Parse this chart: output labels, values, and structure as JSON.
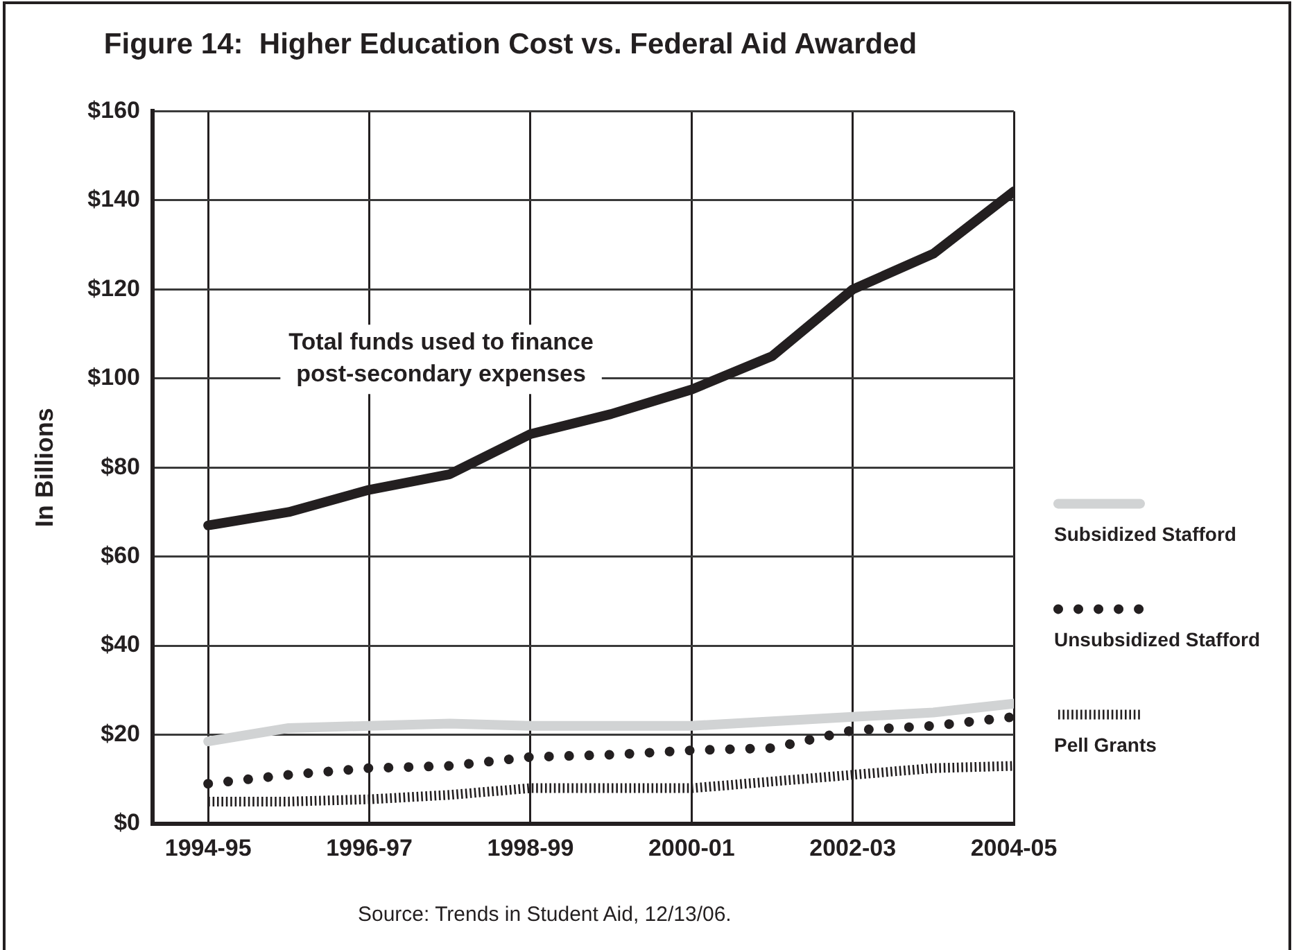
{
  "chart_data": {
    "type": "line",
    "title": "Figure 14:  Higher Education Cost vs. Federal Aid Awarded",
    "ylabel": "In Billions",
    "categories": [
      "1994-95",
      null,
      "1996-97",
      null,
      "1998-99",
      null,
      "2000-01",
      null,
      "2002-03",
      null,
      "2004-05"
    ],
    "series": [
      {
        "name": "Total funds used to finance post-secondary expenses",
        "color": "#231f20",
        "line_style": "solid",
        "values": [
          67,
          70,
          75,
          78.5,
          87.5,
          92,
          97.5,
          105,
          120,
          128,
          142
        ]
      },
      {
        "name": "Subsidized Stafford",
        "color": "#d1d3d4",
        "line_style": "solid",
        "values": [
          18.5,
          21.5,
          22,
          22.5,
          22,
          22,
          22,
          23,
          24,
          25,
          27
        ]
      },
      {
        "name": "Unsubsidized Stafford",
        "color": "#231f20",
        "line_style": "dotted",
        "values": [
          9,
          11,
          12.5,
          13,
          15,
          15.5,
          16.5,
          17,
          21,
          22,
          24
        ]
      },
      {
        "name": "Pell Grants",
        "color": "#231f20",
        "line_style": "dashed",
        "values": [
          5,
          5,
          5.5,
          6.5,
          8,
          8,
          8,
          9.5,
          11,
          12.5,
          13
        ]
      }
    ],
    "ylim": [
      0,
      160
    ],
    "yticks": [
      {
        "value": 0,
        "label": "$0"
      },
      {
        "value": 20,
        "label": "$20"
      },
      {
        "value": 40,
        "label": "$40"
      },
      {
        "value": 60,
        "label": "$60"
      },
      {
        "value": 80,
        "label": "$80"
      },
      {
        "value": 100,
        "label": "$100"
      },
      {
        "value": 120,
        "label": "$120"
      },
      {
        "value": 140,
        "label": "$140"
      },
      {
        "value": 160,
        "label": "$160"
      }
    ],
    "grid": true,
    "legend": "right",
    "annotations": [
      "Source: Trends in Student Aid, 12/13/06."
    ]
  }
}
